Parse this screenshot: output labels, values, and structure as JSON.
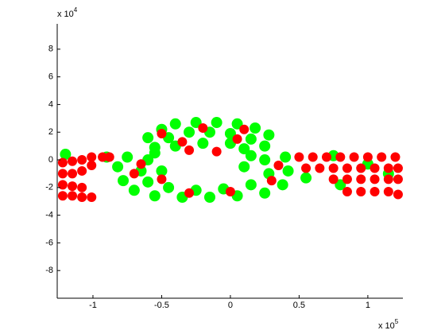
{
  "chart_data": {
    "type": "scatter",
    "xlim": [
      -1.26,
      1.255
    ],
    "ylim": [
      -10,
      9.83
    ],
    "xticks": [
      -1,
      -0.5,
      0,
      0.5,
      1
    ],
    "yticks": [
      -8,
      -6,
      -4,
      -2,
      0,
      2,
      4,
      6,
      8
    ],
    "x_multiplier": "x 10",
    "x_exponent": "5",
    "y_multiplier": "x 10",
    "y_exponent": "4",
    "series": [
      {
        "color": "#00ff00",
        "x": [
          -0.6,
          -0.5,
          -0.4,
          -0.25,
          -0.1,
          0.05,
          0.18,
          0.28,
          -0.55,
          -0.45,
          -0.3,
          -0.15,
          0.0,
          0.15,
          0.25,
          -0.4,
          -0.2,
          0.0,
          0.1,
          -0.82,
          -0.78,
          -0.7,
          -0.55,
          -0.35,
          -0.15,
          0.05,
          0.25,
          0.38,
          0.42,
          0.4,
          -0.75,
          -0.65,
          -0.6,
          -0.45,
          -0.25,
          -0.05,
          0.15,
          0.28,
          0.25,
          -0.6,
          -0.5,
          0.1,
          0.15,
          -0.55,
          -1.2,
          -0.9,
          0.75,
          1.0,
          0.8,
          1.15,
          0.55
        ],
        "y": [
          1.6,
          2.2,
          2.6,
          2.7,
          2.7,
          2.6,
          2.3,
          1.8,
          0.9,
          1.6,
          2.0,
          2.0,
          1.9,
          1.5,
          1.0,
          1.0,
          1.2,
          1.2,
          0.8,
          -0.5,
          -1.5,
          -2.2,
          -2.6,
          -2.7,
          -2.7,
          -2.6,
          -2.4,
          -1.8,
          -0.8,
          0.2,
          0.2,
          -0.8,
          -1.6,
          -2.0,
          -2.2,
          -2.1,
          -1.8,
          -1.0,
          0.0,
          0.0,
          -0.8,
          -0.5,
          0.3,
          0.5,
          0.4,
          0.2,
          0.3,
          -0.3,
          -1.8,
          -1.0,
          -1.3
        ]
      },
      {
        "color": "#ff0000",
        "x": [
          -1.22,
          -1.15,
          -1.08,
          -1.01,
          -1.22,
          -1.15,
          -1.08,
          -1.22,
          -1.15,
          -1.08,
          -1.01,
          -1.22,
          -1.15,
          -1.08,
          -1.01,
          -0.93,
          -0.88,
          0.5,
          0.6,
          0.7,
          0.8,
          0.9,
          1.0,
          1.1,
          1.2,
          0.55,
          0.65,
          0.75,
          0.85,
          0.95,
          1.05,
          1.15,
          1.22,
          0.75,
          0.85,
          0.95,
          1.05,
          1.15,
          1.22,
          0.85,
          0.95,
          1.05,
          1.15,
          1.22,
          -0.5,
          -0.2,
          0.1,
          -0.35,
          0.05,
          -0.7,
          -0.5,
          -0.3,
          0.0,
          0.3,
          0.35,
          -0.65,
          -0.1,
          -0.3
        ],
        "y": [
          -2.6,
          -2.6,
          -2.7,
          -2.7,
          -1.8,
          -1.9,
          -2.0,
          -1.0,
          -1.0,
          -0.8,
          -0.4,
          -0.2,
          -0.1,
          0.0,
          0.2,
          0.2,
          0.2,
          0.2,
          0.2,
          0.2,
          0.2,
          0.2,
          0.2,
          0.2,
          0.2,
          -0.6,
          -0.6,
          -0.6,
          -0.6,
          -0.6,
          -0.6,
          -0.6,
          -0.6,
          -1.4,
          -1.4,
          -1.4,
          -1.4,
          -1.4,
          -1.4,
          -2.3,
          -2.3,
          -2.3,
          -2.3,
          -2.5,
          1.9,
          2.3,
          2.2,
          1.3,
          1.5,
          -1.0,
          -1.4,
          -2.4,
          -2.3,
          -1.5,
          -0.4,
          -0.3,
          0.6,
          0.7
        ]
      }
    ]
  }
}
